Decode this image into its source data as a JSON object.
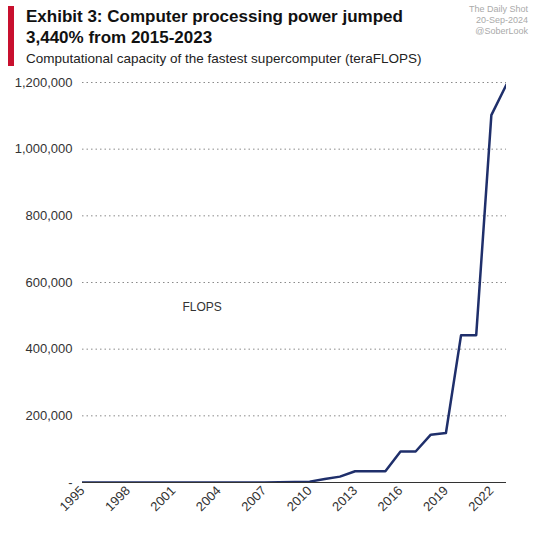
{
  "chart_data": {
    "type": "line",
    "title": "Exhibit 3: Computer processing power jumped 3,440% from 2015-2023",
    "subtitle": "Computational capacity of the fastest supercomputer (teraFLOPS)",
    "annotations": [
      "The Daily Shot",
      "20-Sep-2024",
      "@SoberLook"
    ],
    "x": [
      1995,
      1996,
      1997,
      1998,
      1999,
      2000,
      2001,
      2002,
      2003,
      2004,
      2005,
      2006,
      2007,
      2008,
      2009,
      2010,
      2011,
      2012,
      2013,
      2014,
      2015,
      2016,
      2017,
      2018,
      2019,
      2020,
      2021,
      2022,
      2023
    ],
    "series": [
      {
        "name": "FLOPS",
        "color": "#1f2f6b",
        "values": [
          0.17,
          0.37,
          1.07,
          1.34,
          2.1,
          4.9,
          7.2,
          35.9,
          35.9,
          70.7,
          280.6,
          280.6,
          280.6,
          1026,
          1759,
          2566,
          10510,
          17590,
          33863,
          33863,
          33863,
          93015,
          93015,
          143500,
          148600,
          442010,
          442010,
          1102000,
          1194000
        ]
      }
    ],
    "xlim": [
      1995,
      2023
    ],
    "xticks": [
      1995,
      1998,
      2001,
      2004,
      2007,
      2010,
      2013,
      2016,
      2019,
      2022
    ],
    "ylim": [
      0,
      1200000
    ],
    "yticks": [
      {
        "value": 0,
        "label": "-"
      },
      {
        "value": 200000,
        "label": "200,000"
      },
      {
        "value": 400000,
        "label": "400,000"
      },
      {
        "value": 600000,
        "label": "600,000"
      },
      {
        "value": 800000,
        "label": "800,000"
      },
      {
        "value": 1000000,
        "label": "1,000,000"
      },
      {
        "value": 1200000,
        "label": "1,200,000"
      }
    ],
    "grid": true
  }
}
